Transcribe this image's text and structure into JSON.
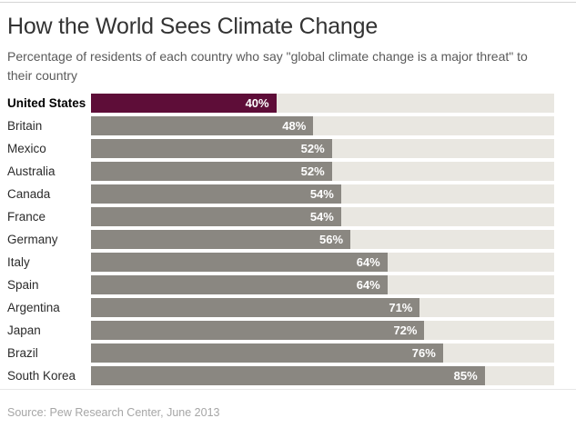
{
  "page": {
    "title": "How the World Sees Climate Change",
    "subtitle": "Percentage of residents of each country who say \"global climate change is a major threat\" to their country",
    "source": "Source: Pew Research Center, June 2013"
  },
  "chart_data": {
    "type": "bar",
    "orientation": "horizontal",
    "title": "How the World Sees Climate Change",
    "xlabel": "",
    "ylabel": "",
    "xlim": [
      0,
      100
    ],
    "unit": "%",
    "grid": false,
    "legend": false,
    "categories": [
      "United States",
      "Britain",
      "Mexico",
      "Australia",
      "Canada",
      "France",
      "Germany",
      "Italy",
      "Spain",
      "Argentina",
      "Japan",
      "Brazil",
      "South Korea"
    ],
    "values": [
      40,
      48,
      52,
      52,
      54,
      54,
      56,
      64,
      64,
      71,
      72,
      76,
      85
    ],
    "value_labels": [
      "40%",
      "48%",
      "52%",
      "52%",
      "54%",
      "54%",
      "56%",
      "64%",
      "64%",
      "71%",
      "72%",
      "76%",
      "85%"
    ],
    "highlight_index": 0,
    "colors": {
      "highlight_bar": "#5e0d38",
      "bar": "#8a8781",
      "track": "#e9e7e1"
    }
  }
}
